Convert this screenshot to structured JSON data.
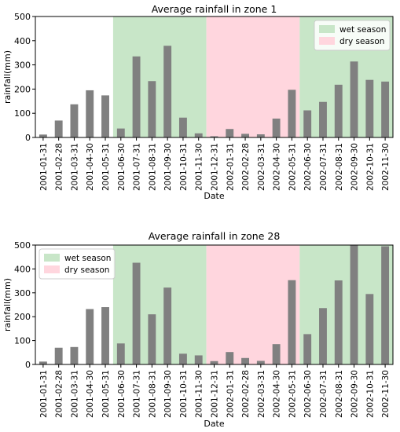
{
  "colors": {
    "bar": "#808080",
    "wet": "#c8e6c8",
    "dry": "#ffd6de",
    "axis": "#000000",
    "background": "#ffffff"
  },
  "chart_data": [
    {
      "type": "bar",
      "title": "Average rainfall in zone 1",
      "xlabel": "Date",
      "ylabel": "rainfall(mm)",
      "ylim": [
        0,
        500
      ],
      "yticks": [
        "0",
        "100",
        "200",
        "300",
        "400",
        "500"
      ],
      "legend_position": "top-right",
      "grid": false,
      "categories": [
        "2001-01-31",
        "2001-02-28",
        "2001-03-31",
        "2001-04-30",
        "2001-05-31",
        "2001-06-30",
        "2001-07-31",
        "2001-08-31",
        "2001-09-30",
        "2001-10-31",
        "2001-11-30",
        "2001-12-31",
        "2002-01-31",
        "2002-02-28",
        "2002-03-31",
        "2002-04-30",
        "2002-05-31",
        "2002-06-30",
        "2002-07-31",
        "2002-08-31",
        "2002-09-30",
        "2002-10-31",
        "2002-11-30"
      ],
      "values": [
        12,
        70,
        137,
        195,
        174,
        37,
        335,
        233,
        379,
        82,
        17,
        5,
        35,
        15,
        13,
        78,
        197,
        112,
        147,
        218,
        314,
        238,
        231
      ],
      "shaded_regions": [
        {
          "label": "wet season",
          "start": "2001-06-30",
          "end": "2001-11-30",
          "color": "wet"
        },
        {
          "label": "dry season",
          "start": "2001-12-31",
          "end": "2002-05-31",
          "color": "dry"
        },
        {
          "label": "wet season",
          "start": "2002-06-30",
          "end": "2002-11-30",
          "color": "wet"
        }
      ],
      "legend": [
        {
          "label": "wet season",
          "color": "wet"
        },
        {
          "label": "dry season",
          "color": "dry"
        }
      ]
    },
    {
      "type": "bar",
      "title": "Average rainfall in zone 28",
      "xlabel": "Date",
      "ylabel": "rainfall(mm)",
      "ylim": [
        0,
        500
      ],
      "yticks": [
        "0",
        "100",
        "200",
        "300",
        "400",
        "500"
      ],
      "legend_position": "top-left",
      "grid": false,
      "categories": [
        "2001-01-31",
        "2001-02-28",
        "2001-03-31",
        "2001-04-30",
        "2001-05-31",
        "2001-06-30",
        "2001-07-31",
        "2001-08-31",
        "2001-09-30",
        "2001-10-31",
        "2001-11-30",
        "2001-12-31",
        "2002-01-31",
        "2002-02-28",
        "2002-03-31",
        "2002-04-30",
        "2002-05-31",
        "2002-06-30",
        "2002-07-31",
        "2002-08-31",
        "2002-09-30",
        "2002-10-31",
        "2002-11-30"
      ],
      "values": [
        12,
        70,
        73,
        232,
        240,
        88,
        426,
        210,
        322,
        45,
        38,
        14,
        52,
        27,
        15,
        85,
        353,
        127,
        236,
        352,
        500,
        295,
        495
      ],
      "shaded_regions": [
        {
          "label": "wet season",
          "start": "2001-06-30",
          "end": "2001-11-30",
          "color": "wet"
        },
        {
          "label": "dry season",
          "start": "2001-12-31",
          "end": "2002-05-31",
          "color": "dry"
        },
        {
          "label": "wet season",
          "start": "2002-06-30",
          "end": "2002-11-30",
          "color": "wet"
        }
      ],
      "legend": [
        {
          "label": "wet season",
          "color": "wet"
        },
        {
          "label": "dry season",
          "color": "dry"
        }
      ]
    }
  ]
}
